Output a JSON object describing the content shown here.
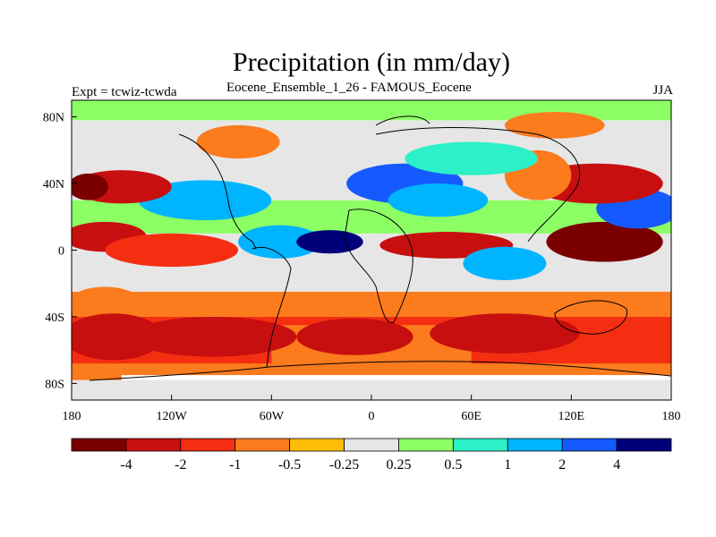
{
  "title": "Precipitation (in mm/day)",
  "subtitle": "Eocene_Ensemble_1_26 - FAMOUS_Eocene",
  "left_label": "Expt = tcwiz-tcwda",
  "right_label": "JJA",
  "lat_ticks": [
    "80N",
    "40N",
    "0",
    "40S",
    "80S"
  ],
  "lon_ticks": [
    "180",
    "120W",
    "60W",
    "0",
    "60E",
    "120E",
    "180"
  ],
  "colorbar": {
    "colors": [
      "#7a0000",
      "#c80f0f",
      "#f52e12",
      "#fb7b1d",
      "#ffbd0a",
      "#e6e6e6",
      "#8cff64",
      "#2bf0c8",
      "#00b4ff",
      "#145aff",
      "#00007a"
    ],
    "labels": [
      "-4",
      "-2",
      "-1",
      "-0.5",
      "-0.25",
      "0.25",
      "0.5",
      "1",
      "2",
      "4"
    ]
  },
  "chart_data": {
    "type": "heatmap",
    "title": "Precipitation (in mm/day)",
    "subtitle": "Eocene_Ensemble_1_26 - FAMOUS_Eocene",
    "season": "JJA",
    "experiment": "Expt = tcwiz-tcwda",
    "x_range": [
      -180,
      180
    ],
    "y_range": [
      -90,
      90
    ],
    "levels": [
      -4,
      -2,
      -1,
      -0.5,
      -0.25,
      0.25,
      0.5,
      1,
      2,
      4
    ]
  },
  "map_fields": {
    "bands": [
      {
        "lon": [
          -180,
          180
        ],
        "lat": [
          -90,
          -78
        ],
        "color": "#e6e6e6"
      },
      {
        "lon": [
          -180,
          -150
        ],
        "lat": [
          -78,
          -40
        ],
        "color": "#fb7b1d"
      },
      {
        "lon": [
          -150,
          180
        ],
        "lat": [
          -75,
          -65
        ],
        "color": "#fb7b1d"
      },
      {
        "lon": [
          -180,
          180
        ],
        "lat": [
          -68,
          -40
        ],
        "color": "#f52e12"
      },
      {
        "lon": [
          -60,
          60
        ],
        "lat": [
          -70,
          -45
        ],
        "color": "#fb7b1d"
      },
      {
        "lon": [
          -180,
          180
        ],
        "lat": [
          -40,
          -25
        ],
        "color": "#fb7b1d"
      },
      {
        "lon": [
          -180,
          180
        ],
        "lat": [
          -25,
          -10
        ],
        "color": "#e6e6e6"
      },
      {
        "lon": [
          -180,
          180
        ],
        "lat": [
          -10,
          10
        ],
        "color": "#e6e6e6"
      },
      {
        "lon": [
          -180,
          180
        ],
        "lat": [
          10,
          30
        ],
        "color": "#8cff64"
      },
      {
        "lon": [
          -180,
          180
        ],
        "lat": [
          30,
          60
        ],
        "color": "#e6e6e6"
      },
      {
        "lon": [
          -180,
          180
        ],
        "lat": [
          60,
          78
        ],
        "color": "#e6e6e6"
      },
      {
        "lon": [
          -180,
          180
        ],
        "lat": [
          78,
          90
        ],
        "color": "#8cff64"
      }
    ],
    "blobs": [
      {
        "lon": -155,
        "lat": -52,
        "rx": 30,
        "ry": 14,
        "color": "#c80f0f"
      },
      {
        "lon": -95,
        "lat": -52,
        "rx": 50,
        "ry": 12,
        "color": "#c80f0f"
      },
      {
        "lon": -10,
        "lat": -52,
        "rx": 35,
        "ry": 11,
        "color": "#c80f0f"
      },
      {
        "lon": 80,
        "lat": -50,
        "rx": 45,
        "ry": 12,
        "color": "#c80f0f"
      },
      {
        "lon": 155,
        "lat": -55,
        "rx": 25,
        "ry": 12,
        "color": "#f52e12"
      },
      {
        "lon": -160,
        "lat": -30,
        "rx": 20,
        "ry": 8,
        "color": "#fb7b1d"
      },
      {
        "lon": -160,
        "lat": 8,
        "rx": 25,
        "ry": 9,
        "color": "#c80f0f"
      },
      {
        "lon": -120,
        "lat": 0,
        "rx": 40,
        "ry": 10,
        "color": "#f52e12"
      },
      {
        "lon": -55,
        "lat": 5,
        "rx": 25,
        "ry": 10,
        "color": "#00b4ff"
      },
      {
        "lon": -25,
        "lat": 5,
        "rx": 20,
        "ry": 7,
        "color": "#00007a"
      },
      {
        "lon": 45,
        "lat": 3,
        "rx": 40,
        "ry": 8,
        "color": "#c80f0f"
      },
      {
        "lon": 80,
        "lat": -8,
        "rx": 25,
        "ry": 10,
        "color": "#00b4ff"
      },
      {
        "lon": 140,
        "lat": 5,
        "rx": 35,
        "ry": 12,
        "color": "#7a0000"
      },
      {
        "lon": 160,
        "lat": 25,
        "rx": 25,
        "ry": 12,
        "color": "#145aff"
      },
      {
        "lon": 135,
        "lat": 40,
        "rx": 40,
        "ry": 12,
        "color": "#c80f0f"
      },
      {
        "lon": 100,
        "lat": 45,
        "rx": 20,
        "ry": 15,
        "color": "#fb7b1d"
      },
      {
        "lon": 20,
        "lat": 40,
        "rx": 35,
        "ry": 12,
        "color": "#145aff"
      },
      {
        "lon": 40,
        "lat": 30,
        "rx": 30,
        "ry": 10,
        "color": "#00b4ff"
      },
      {
        "lon": -100,
        "lat": 30,
        "rx": 40,
        "ry": 12,
        "color": "#00b4ff"
      },
      {
        "lon": -150,
        "lat": 38,
        "rx": 30,
        "ry": 10,
        "color": "#c80f0f"
      },
      {
        "lon": -170,
        "lat": 38,
        "rx": 12,
        "ry": 8,
        "color": "#7a0000"
      },
      {
        "lon": -80,
        "lat": 65,
        "rx": 25,
        "ry": 10,
        "color": "#fb7b1d"
      },
      {
        "lon": 110,
        "lat": 75,
        "rx": 30,
        "ry": 8,
        "color": "#fb7b1d"
      },
      {
        "lon": 60,
        "lat": 55,
        "rx": 40,
        "ry": 10,
        "color": "#2bf0c8"
      }
    ]
  }
}
